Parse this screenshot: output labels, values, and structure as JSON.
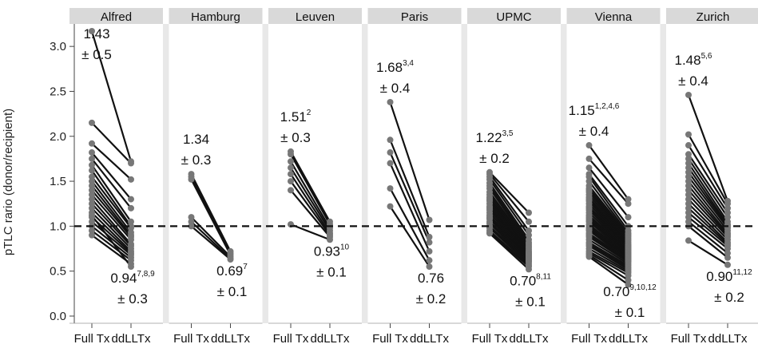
{
  "chart_data": {
    "type": "line",
    "ylabel": "pTLC rario (donor/recipient)",
    "ylim": [
      -0.08,
      3.25
    ],
    "yticks": [
      "0.0",
      "0.5",
      "1.0",
      "1.5",
      "2.0",
      "2.5",
      "3.0"
    ],
    "reference_line": {
      "y": 1.0,
      "style": "dashed"
    },
    "x_categories": [
      "Full Tx",
      "ddLLTx"
    ],
    "colors": {
      "line": "#111111",
      "point": "#777777",
      "strip": "#d9d9d9",
      "panel_gap": "#e8e8e8"
    },
    "panels": [
      {
        "title": "Alfred",
        "left_mean": "1.43",
        "left_mean_sup": "",
        "left_sd": "± 0.5",
        "right_mean": "0.94",
        "right_mean_sup": "7,8,9",
        "right_sd": "± 0.3",
        "pairs": [
          [
            3.17,
            1.72
          ],
          [
            2.15,
            1.7
          ],
          [
            1.92,
            1.52
          ],
          [
            1.82,
            1.3
          ],
          [
            1.75,
            1.2
          ],
          [
            1.68,
            1.05
          ],
          [
            1.62,
            1.0
          ],
          [
            1.55,
            0.98
          ],
          [
            1.5,
            0.93
          ],
          [
            1.45,
            0.9
          ],
          [
            1.4,
            0.88
          ],
          [
            1.35,
            0.85
          ],
          [
            1.3,
            0.8
          ],
          [
            1.25,
            0.78
          ],
          [
            1.2,
            0.75
          ],
          [
            1.15,
            0.72
          ],
          [
            1.1,
            0.7
          ],
          [
            1.05,
            0.68
          ],
          [
            1.0,
            0.65
          ],
          [
            0.95,
            0.62
          ],
          [
            0.9,
            0.58
          ],
          [
            1.12,
            0.55
          ]
        ]
      },
      {
        "title": "Hamburg",
        "left_mean": "1.34",
        "left_mean_sup": "",
        "left_sd": "± 0.3",
        "right_mean": "0.69",
        "right_mean_sup": "7",
        "right_sd": "± 0.1",
        "pairs": [
          [
            1.58,
            0.72
          ],
          [
            1.55,
            0.7
          ],
          [
            1.52,
            0.68
          ],
          [
            1.1,
            0.66
          ],
          [
            1.05,
            0.64
          ],
          [
            1.0,
            0.63
          ]
        ]
      },
      {
        "title": "Leuven",
        "left_mean": "1.51",
        "left_mean_sup": "2",
        "left_sd": "± 0.3",
        "right_mean": "0.93",
        "right_mean_sup": "10",
        "right_sd": "± 0.1",
        "pairs": [
          [
            1.83,
            1.05
          ],
          [
            1.8,
            1.02
          ],
          [
            1.72,
            0.98
          ],
          [
            1.65,
            0.95
          ],
          [
            1.58,
            0.92
          ],
          [
            1.5,
            0.9
          ],
          [
            1.4,
            0.88
          ],
          [
            1.02,
            0.85
          ]
        ]
      },
      {
        "title": "Paris",
        "left_mean": "1.68",
        "left_mean_sup": "3,4",
        "left_sd": "± 0.4",
        "right_mean": "0.76",
        "right_mean_sup": "",
        "right_sd": "± 0.2",
        "pairs": [
          [
            2.38,
            1.07
          ],
          [
            1.96,
            0.88
          ],
          [
            1.82,
            0.82
          ],
          [
            1.7,
            0.72
          ],
          [
            1.42,
            0.62
          ],
          [
            1.22,
            0.55
          ]
        ]
      },
      {
        "title": "UPMC",
        "left_mean": "1.22",
        "left_mean_sup": "3,5",
        "left_sd": "± 0.2",
        "right_mean": "0.70",
        "right_mean_sup": "8,11",
        "right_sd": "± 0.1",
        "pairs": [
          [
            1.6,
            1.15
          ],
          [
            1.58,
            1.05
          ],
          [
            1.55,
            0.95
          ],
          [
            1.52,
            0.9
          ],
          [
            1.48,
            0.85
          ],
          [
            1.45,
            0.82
          ],
          [
            1.42,
            0.8
          ],
          [
            1.38,
            0.78
          ],
          [
            1.35,
            0.76
          ],
          [
            1.32,
            0.74
          ],
          [
            1.3,
            0.72
          ],
          [
            1.28,
            0.71
          ],
          [
            1.25,
            0.7
          ],
          [
            1.22,
            0.69
          ],
          [
            1.2,
            0.68
          ],
          [
            1.18,
            0.67
          ],
          [
            1.15,
            0.66
          ],
          [
            1.12,
            0.65
          ],
          [
            1.1,
            0.64
          ],
          [
            1.08,
            0.63
          ],
          [
            1.05,
            0.62
          ],
          [
            1.03,
            0.61
          ],
          [
            1.0,
            0.6
          ],
          [
            0.98,
            0.58
          ],
          [
            0.95,
            0.56
          ],
          [
            0.93,
            0.55
          ],
          [
            0.92,
            0.52
          ]
        ]
      },
      {
        "title": "Vienna",
        "left_mean": "1.15",
        "left_mean_sup": "1,2,4,6",
        "left_sd": "± 0.4",
        "right_mean": "0.70",
        "right_mean_sup": "9,10,12",
        "right_sd": "± 0.1",
        "pairs": [
          [
            1.9,
            1.3
          ],
          [
            1.75,
            1.25
          ],
          [
            1.65,
            1.1
          ],
          [
            1.58,
            1.0
          ],
          [
            1.55,
            0.95
          ],
          [
            1.5,
            0.92
          ],
          [
            1.45,
            0.9
          ],
          [
            1.42,
            0.88
          ],
          [
            1.4,
            0.86
          ],
          [
            1.38,
            0.84
          ],
          [
            1.35,
            0.82
          ],
          [
            1.32,
            0.8
          ],
          [
            1.3,
            0.79
          ],
          [
            1.28,
            0.78
          ],
          [
            1.25,
            0.77
          ],
          [
            1.22,
            0.76
          ],
          [
            1.2,
            0.75
          ],
          [
            1.18,
            0.74
          ],
          [
            1.15,
            0.73
          ],
          [
            1.12,
            0.72
          ],
          [
            1.1,
            0.71
          ],
          [
            1.08,
            0.7
          ],
          [
            1.06,
            0.69
          ],
          [
            1.05,
            0.68
          ],
          [
            1.02,
            0.67
          ],
          [
            1.0,
            0.66
          ],
          [
            0.98,
            0.65
          ],
          [
            0.96,
            0.64
          ],
          [
            0.95,
            0.63
          ],
          [
            0.92,
            0.62
          ],
          [
            0.9,
            0.61
          ],
          [
            0.88,
            0.6
          ],
          [
            0.85,
            0.58
          ],
          [
            0.82,
            0.56
          ],
          [
            0.8,
            0.54
          ],
          [
            0.78,
            0.52
          ],
          [
            0.75,
            0.5
          ],
          [
            0.72,
            0.48
          ],
          [
            0.7,
            0.45
          ],
          [
            0.68,
            0.4
          ],
          [
            0.66,
            0.35
          ]
        ]
      },
      {
        "title": "Zurich",
        "left_mean": "1.48",
        "left_mean_sup": "5,6",
        "left_sd": "± 0.4",
        "right_mean": "0.90",
        "right_mean_sup": "11,12",
        "right_sd": "± 0.2",
        "pairs": [
          [
            2.46,
            1.28
          ],
          [
            2.02,
            1.25
          ],
          [
            1.9,
            1.2
          ],
          [
            1.8,
            1.15
          ],
          [
            1.75,
            1.1
          ],
          [
            1.7,
            1.05
          ],
          [
            1.65,
            1.02
          ],
          [
            1.6,
            1.0
          ],
          [
            1.55,
            0.98
          ],
          [
            1.5,
            0.95
          ],
          [
            1.45,
            0.92
          ],
          [
            1.4,
            0.9
          ],
          [
            1.35,
            0.88
          ],
          [
            1.3,
            0.85
          ],
          [
            1.25,
            0.82
          ],
          [
            1.2,
            0.8
          ],
          [
            1.15,
            0.78
          ],
          [
            1.1,
            0.75
          ],
          [
            1.05,
            0.7
          ],
          [
            1.0,
            0.65
          ],
          [
            0.84,
            0.57
          ]
        ]
      }
    ]
  }
}
